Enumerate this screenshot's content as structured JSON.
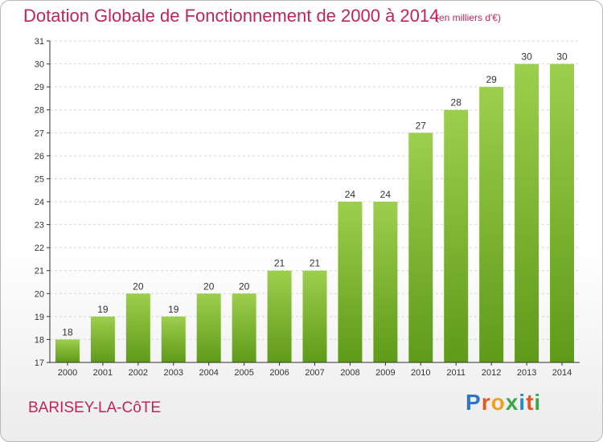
{
  "header": {
    "title": "Dotation Globale de Fonctionnement de 2000 à 2014",
    "unit": "(en milliers d'€)"
  },
  "footer": {
    "commune": "BARISEY-LA-CôTE",
    "logo_text": "Proxiti",
    "logo_colors": [
      "#2e75c7",
      "#e8561f",
      "#f0a020",
      "#3aa84a",
      "#1f8fd0",
      "#e8561f",
      "#3aa84a"
    ]
  },
  "colors": {
    "title": "#c0245b",
    "bar_top": "#9ccf4c",
    "bar_bottom": "#5f9a19",
    "axis": "#333333",
    "grid": "#d6d6d6"
  },
  "chart_data": {
    "type": "bar",
    "title": "Dotation Globale de Fonctionnement de 2000 à 2014",
    "subtitle": "(en milliers d'€)",
    "xlabel": "",
    "ylabel": "",
    "categories": [
      "2000",
      "2001",
      "2002",
      "2003",
      "2004",
      "2005",
      "2006",
      "2007",
      "2008",
      "2009",
      "2010",
      "2011",
      "2012",
      "2013",
      "2014"
    ],
    "values": [
      18,
      19,
      20,
      19,
      20,
      20,
      21,
      21,
      24,
      24,
      27,
      28,
      29,
      30,
      30
    ],
    "ylim": [
      17,
      31
    ],
    "yticks": [
      17,
      18,
      19,
      20,
      21,
      22,
      23,
      24,
      25,
      26,
      27,
      28,
      29,
      30,
      31
    ],
    "grid": true,
    "data_labels": true,
    "legend": "none"
  }
}
